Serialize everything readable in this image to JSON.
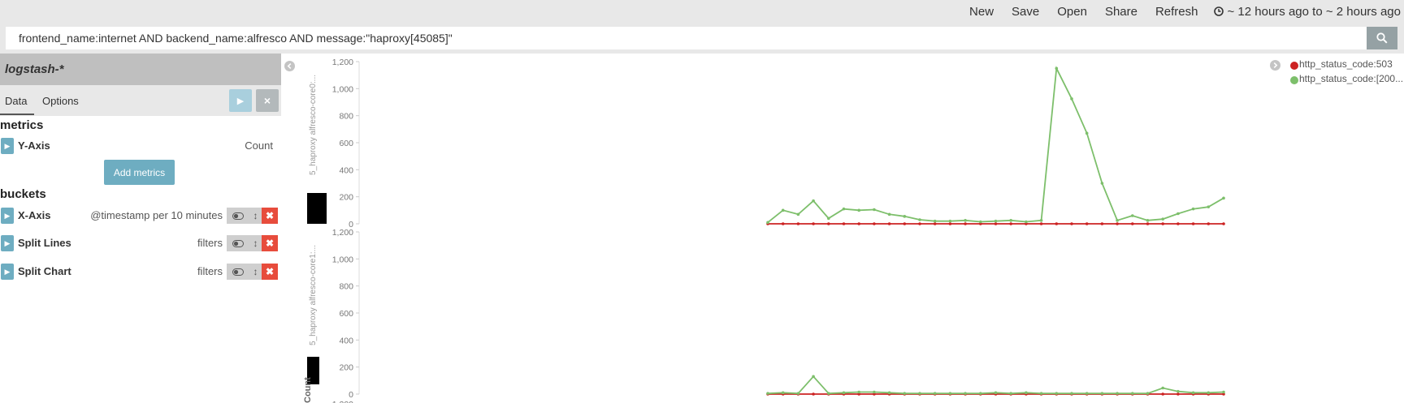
{
  "nav": {
    "items": [
      "New",
      "Save",
      "Open",
      "Share",
      "Refresh"
    ],
    "time_range": "~ 12 hours ago to ~ 2 hours ago"
  },
  "query": {
    "value": "frontend_name:internet AND backend_name:alfresco AND message:\"haproxy[45085]\""
  },
  "sidebar": {
    "index_pattern": "logstash-*",
    "tabs": [
      "Data",
      "Options"
    ],
    "metrics_title": "metrics",
    "buckets_title": "buckets",
    "add_metrics_label": "Add metrics",
    "metrics": [
      {
        "title": "Y-Axis",
        "desc": "Count"
      }
    ],
    "buckets": [
      {
        "title": "X-Axis",
        "desc": "@timestamp per 10 minutes"
      },
      {
        "title": "Split Lines",
        "desc": "filters"
      },
      {
        "title": "Split Chart",
        "desc": "filters"
      }
    ]
  },
  "legend": {
    "items": [
      {
        "label": "http_status_code:503",
        "color": "#cc2222"
      },
      {
        "label": "http_status_code:[200...",
        "color": "#7dbf6b"
      }
    ]
  },
  "colors": {
    "series_503": "#cc2222",
    "series_200": "#7dbf6b",
    "accent": "#6eadc1",
    "remove": "#e74c3c"
  },
  "chart_data": [
    {
      "type": "line",
      "ylabel": "5_haproxy alfresco-core0:...",
      "ylim": [
        0,
        1200
      ],
      "yticks": [
        "1,200",
        "1,000",
        "800",
        "600",
        "400",
        "200",
        "0"
      ],
      "series": [
        {
          "name": "http_status_code:503",
          "values": [
            0,
            0,
            0,
            0,
            0,
            0,
            0,
            0,
            0,
            0,
            0,
            0,
            0,
            0,
            0,
            0,
            0,
            0,
            0,
            0,
            0,
            0,
            0,
            0,
            0,
            0,
            0,
            0,
            0,
            0,
            0
          ]
        },
        {
          "name": "http_status_code:[200...",
          "values": [
            10,
            100,
            70,
            170,
            40,
            110,
            100,
            105,
            70,
            55,
            30,
            20,
            20,
            25,
            15,
            20,
            25,
            15,
            25,
            1150,
            925,
            670,
            300,
            25,
            60,
            25,
            35,
            75,
            110,
            125,
            190
          ]
        }
      ]
    },
    {
      "type": "line",
      "ylabel": "5_haproxy alfresco-core1:...",
      "ylim": [
        0,
        1200
      ],
      "yticks": [
        "1,200",
        "1,000",
        "800",
        "600",
        "400",
        "200",
        "0"
      ],
      "series": [
        {
          "name": "http_status_code:503",
          "values": [
            0,
            0,
            0,
            0,
            0,
            0,
            0,
            0,
            0,
            0,
            0,
            0,
            0,
            0,
            0,
            0,
            0,
            0,
            0,
            0,
            0,
            0,
            0,
            0,
            0,
            0,
            0,
            0,
            0,
            0,
            0
          ]
        },
        {
          "name": "http_status_code:[200...",
          "values": [
            5,
            10,
            5,
            130,
            5,
            10,
            15,
            15,
            10,
            5,
            5,
            5,
            5,
            5,
            5,
            10,
            5,
            10,
            5,
            5,
            5,
            5,
            5,
            5,
            5,
            5,
            45,
            20,
            10,
            10,
            15
          ]
        }
      ]
    }
  ],
  "bottom_axis_label": "Count",
  "bottom_partial_tick": "1,200"
}
